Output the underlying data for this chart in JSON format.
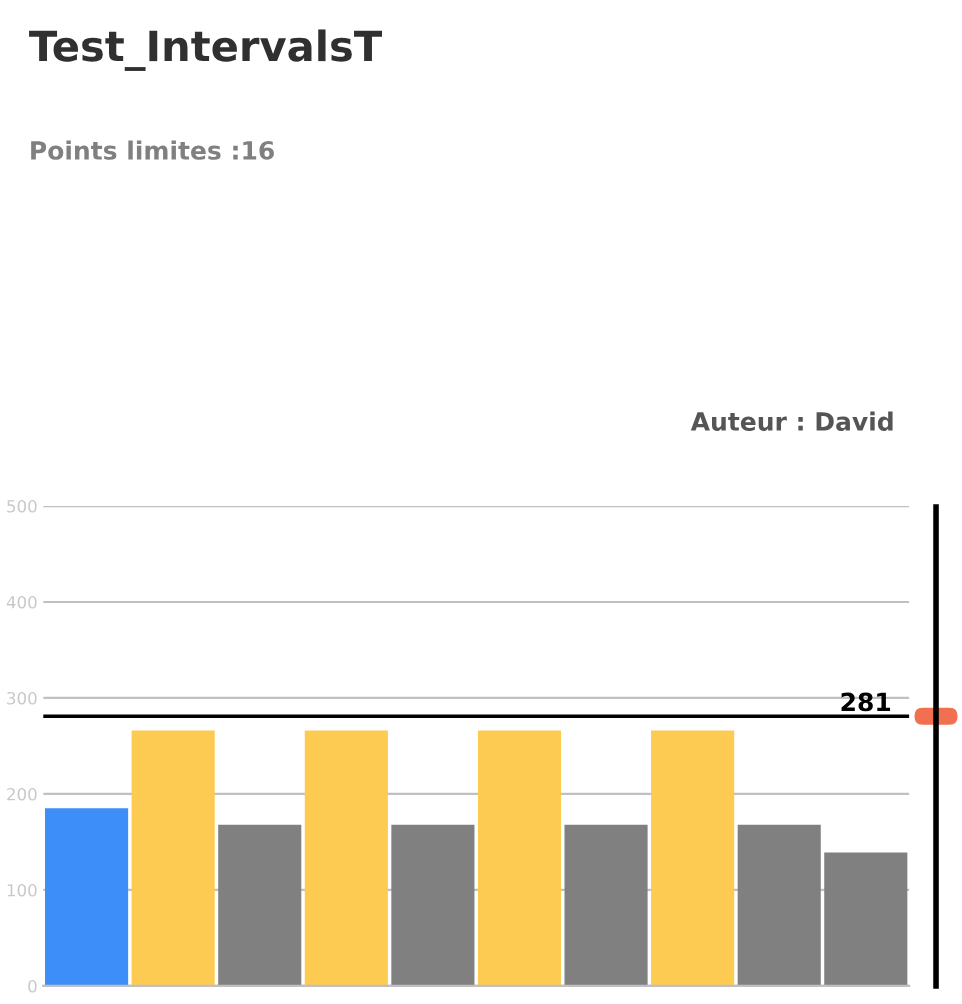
{
  "chart_data": {
    "type": "bar",
    "title": "Test_IntervalsT",
    "subtitle": "Points limites :16",
    "annotations": [
      "Auteur : David"
    ],
    "categories": [
      null,
      null,
      null,
      null,
      null,
      null,
      null,
      null,
      null,
      null
    ],
    "values": [
      185,
      266,
      168,
      266,
      168,
      266,
      168,
      266,
      168,
      139
    ],
    "colors": [
      "#3d8ef8",
      "#fdca52",
      "#808080",
      "#fdca52",
      "#808080",
      "#fdca52",
      "#808080",
      "#fdca52",
      "#808080",
      "#808080"
    ],
    "ylim": [
      0,
      500
    ],
    "yticks": [
      0,
      100,
      200,
      300,
      400,
      500
    ],
    "grid": "y",
    "ref_lines": [
      {
        "axis": "y",
        "value": 281,
        "label": "281",
        "color": "#000000"
      }
    ]
  }
}
